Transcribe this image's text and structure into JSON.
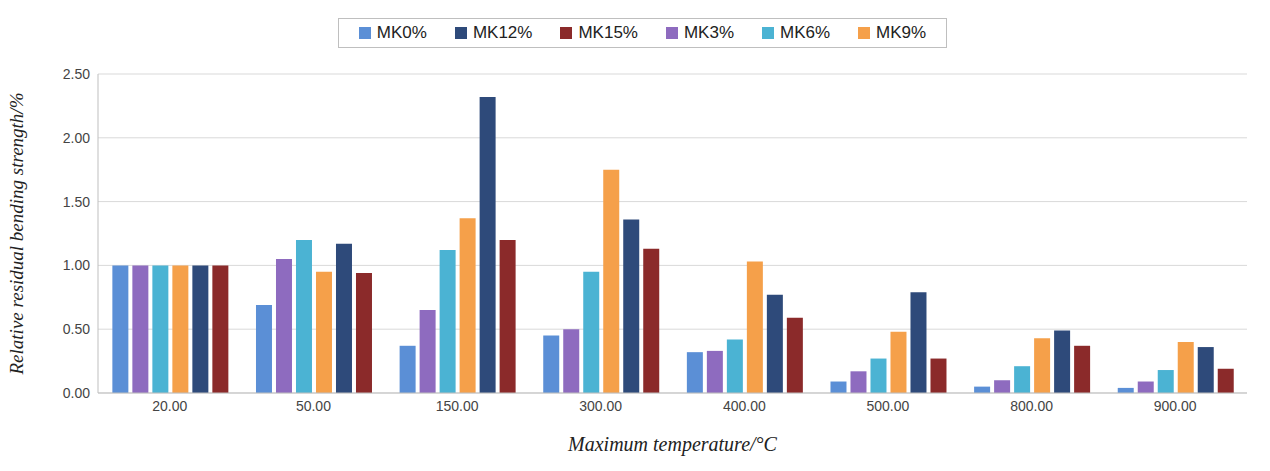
{
  "chart_data": {
    "type": "bar",
    "x_label": "Maximum temperature/°C",
    "y_label": "Relative residual bending strength/%",
    "categories": [
      "20.00",
      "50.00",
      "150.00",
      "300.00",
      "400.00",
      "500.00",
      "800.00",
      "900.00"
    ],
    "series": [
      {
        "name": "MK0%",
        "color": "#5b8fd6",
        "values": [
          1.0,
          0.69,
          0.37,
          0.45,
          0.32,
          0.09,
          0.05,
          0.04
        ]
      },
      {
        "name": "MK3%",
        "color": "#8e6bbf",
        "values": [
          1.0,
          1.05,
          0.65,
          0.5,
          0.33,
          0.17,
          0.1,
          0.09
        ]
      },
      {
        "name": "MK6%",
        "color": "#4bb3d3",
        "values": [
          1.0,
          1.2,
          1.12,
          0.95,
          0.42,
          0.27,
          0.21,
          0.18
        ]
      },
      {
        "name": "MK9%",
        "color": "#f5a04a",
        "values": [
          1.0,
          0.95,
          1.37,
          1.75,
          1.03,
          0.48,
          0.43,
          0.4
        ]
      },
      {
        "name": "MK12%",
        "color": "#2e4a7a",
        "values": [
          1.0,
          1.17,
          2.32,
          1.36,
          0.77,
          0.79,
          0.49,
          0.36
        ]
      },
      {
        "name": "MK15%",
        "color": "#8b2a2a",
        "values": [
          1.0,
          0.94,
          1.2,
          1.13,
          0.59,
          0.27,
          0.37,
          0.19
        ]
      }
    ],
    "ylim": [
      0,
      2.5
    ],
    "yticks": [
      {
        "value": 0,
        "label": "0.00"
      },
      {
        "value": 0.5,
        "label": "0.50"
      },
      {
        "value": 1,
        "label": "1.00"
      },
      {
        "value": 1.5,
        "label": "1.50"
      },
      {
        "value": 2,
        "label": "2.00"
      },
      {
        "value": 2.5,
        "label": "2.50"
      }
    ],
    "grid": true,
    "legend": "top"
  }
}
